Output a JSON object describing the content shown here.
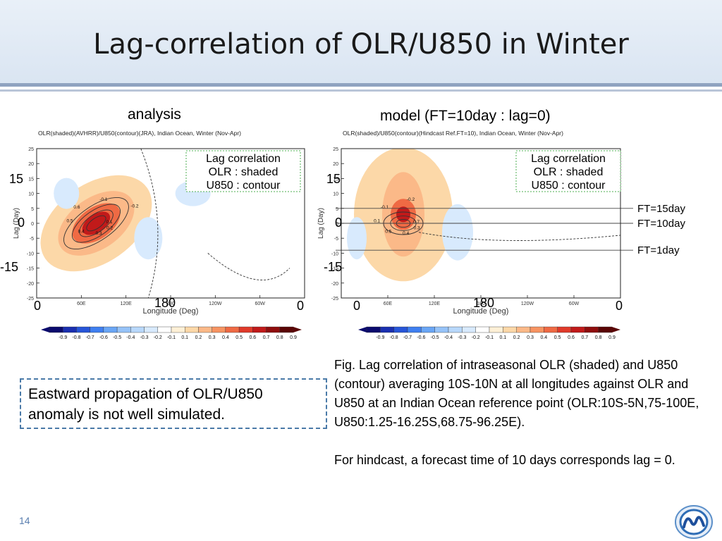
{
  "slide": {
    "title": "Lag-correlation of OLR/U850 in Winter",
    "page_number": "14",
    "callout": "Eastward propagation of OLR/U850 anomaly  is not well simulated.",
    "figure_caption": "Fig. Lag correlation of intraseasonal OLR (shaded) and U850 (contour) averaging 10S-10N at all longitudes  against  OLR and U850 at an Indian Ocean reference point (OLR:10S-5N,75-100E, U850:1.25-16.25S,68.75-96.25E).",
    "hindcast_note": "For hindcast, a forecast time of 10 days corresponds lag = 0.",
    "colors": {
      "accent": "#4a7aa8",
      "header_bg": "#dae5f2"
    }
  },
  "chart_data": [
    {
      "type": "heatmap",
      "panel_title": "analysis",
      "subtitle": "OLR(shaded)(AVHRR)/U850(contour)(JRA), Indian Ocean, Winter (Nov-Apr)",
      "xlabel": "Longitude (Deg)",
      "ylabel": "Lag (Day)",
      "x_ticks": [
        "60E",
        "120E",
        "180",
        "120W",
        "60W"
      ],
      "y_ticks": [
        25,
        20,
        15,
        10,
        5,
        0,
        -5,
        -10,
        -15,
        -20,
        -25
      ],
      "xlim": [
        0,
        360
      ],
      "ylim": [
        -25,
        25
      ],
      "legend": [
        "Lag correlation",
        "OLR  : shaded",
        "U850 : contour"
      ],
      "overlay_labels": {
        "y15": "15",
        "y0": "0",
        "ym15": "-15",
        "x0": "0",
        "x180": "180",
        "x360": "0"
      },
      "peak": {
        "lon": 80,
        "lag": 0,
        "value": 0.8
      },
      "contour_labels": [
        "0.1",
        "0.2",
        "0.3",
        "0.4",
        "0.5",
        "0.6",
        "-0.1",
        "-0.2"
      ]
    },
    {
      "type": "heatmap",
      "panel_title": "model  (FT=10day : lag=0)",
      "subtitle": "OLR(shaded)/U850(contour)(Hindcast Ref.FT=10), Indian Ocean, Winter (Nov-Apr)",
      "xlabel": "Longitude (Deg)",
      "ylabel": "Lag (Day)",
      "x_ticks": [
        "60E",
        "120E",
        "180",
        "120W",
        "60W"
      ],
      "y_ticks": [
        25,
        20,
        15,
        10,
        5,
        0,
        -5,
        -10,
        -15,
        -20,
        -25
      ],
      "xlim": [
        0,
        360
      ],
      "ylim": [
        -25,
        25
      ],
      "legend": [
        "Lag correlation",
        "OLR  : shaded",
        "U850 : contour"
      ],
      "overlay_labels": {
        "y15": "15",
        "y0": "0",
        "ym15": "-15",
        "x0": "0",
        "x180": "180",
        "x360": "0"
      },
      "peak": {
        "lon": 80,
        "lag": 0,
        "value": 0.7
      },
      "reference_lines": [
        {
          "label": "FT=15day",
          "lag": 5
        },
        {
          "label": "FT=10day",
          "lag": 0
        },
        {
          "label": "FT=1day",
          "lag": -9
        }
      ],
      "contour_labels": [
        "0.7",
        "0.3",
        "0.4",
        "0.5",
        "0.1",
        "-0.1",
        "-0.2"
      ]
    }
  ],
  "colorbar": {
    "levels": [
      "-0.9",
      "-0.8",
      "-0.7",
      "-0.6",
      "-0.5",
      "-0.4",
      "-0.3",
      "-0.2",
      "-0.1",
      "0.1",
      "0.2",
      "0.3",
      "0.4",
      "0.5",
      "0.6",
      "0.7",
      "0.8",
      "0.9"
    ],
    "colors": [
      "#0a0a6e",
      "#1a2fb0",
      "#2755d8",
      "#3f7ff0",
      "#6aa6f5",
      "#96c3f8",
      "#b8d8fb",
      "#d8eafd",
      "#ffffff",
      "#fef0d6",
      "#fcd8a8",
      "#fbb988",
      "#f79462",
      "#ef6a44",
      "#e03a2a",
      "#c11a1a",
      "#8f0d0d",
      "#5a0505"
    ]
  }
}
